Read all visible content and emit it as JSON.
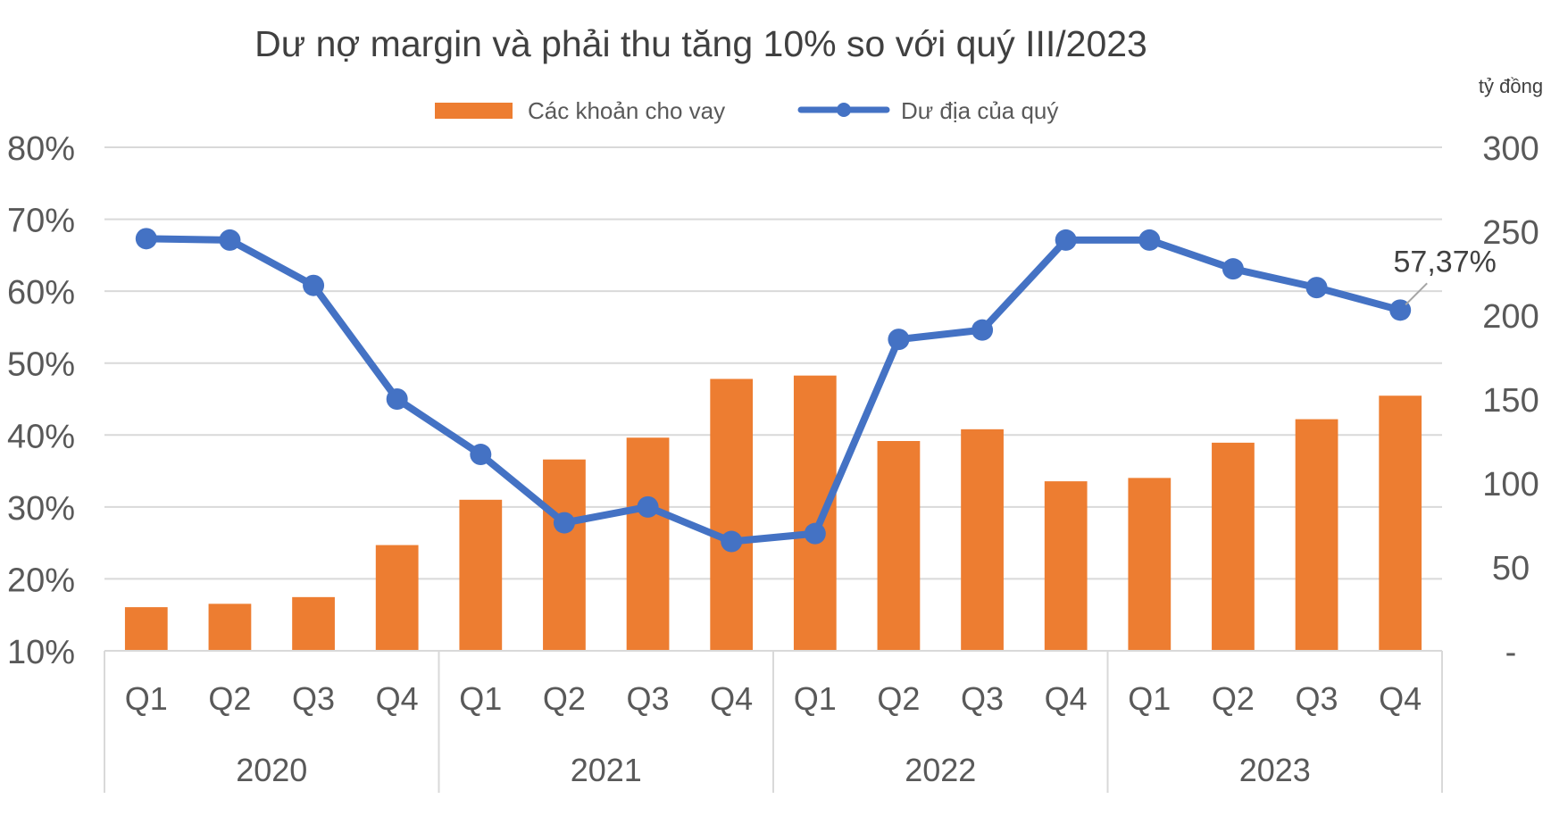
{
  "chart_data": {
    "type": "bar",
    "title": "Dư nợ margin và phải thu tăng 10% so với quý III/2023",
    "right_axis_unit": "tỷ đồng",
    "categories": [
      "Q1",
      "Q2",
      "Q3",
      "Q4",
      "Q1",
      "Q2",
      "Q3",
      "Q4",
      "Q1",
      "Q2",
      "Q3",
      "Q4",
      "Q1",
      "Q2",
      "Q3",
      "Q4"
    ],
    "groups": [
      {
        "label": "2020",
        "count": 4
      },
      {
        "label": "2021",
        "count": 4
      },
      {
        "label": "2022",
        "count": 4
      },
      {
        "label": "2023",
        "count": 4
      }
    ],
    "series": [
      {
        "name": "Các khoản cho vay",
        "kind": "bar",
        "axis": "right",
        "color": "#ED7D31",
        "values": [
          26,
          28,
          32,
          63,
          90,
          114,
          127,
          162,
          164,
          125,
          132,
          101,
          103,
          124,
          138,
          152
        ]
      },
      {
        "name": "Dư địa của quý",
        "kind": "line",
        "axis": "left",
        "color": "#4472C4",
        "values": [
          67.3,
          67.1,
          60.8,
          45.0,
          37.3,
          27.8,
          30.0,
          25.2,
          26.3,
          53.3,
          54.6,
          67.1,
          67.1,
          63.1,
          60.5,
          57.37
        ]
      }
    ],
    "y_left": {
      "ticks": [
        "80%",
        "70%",
        "60%",
        "50%",
        "40%",
        "30%",
        "20%",
        "10%"
      ],
      "range": [
        10,
        80
      ]
    },
    "y_right": {
      "ticks": [
        "300",
        "250",
        "200",
        "150",
        "100",
        "50",
        "-"
      ],
      "range": [
        0,
        300
      ]
    },
    "annotation": {
      "text": "57,37%",
      "series_index": 1,
      "point_index": 15
    },
    "legend_position": "top",
    "grid": true
  }
}
